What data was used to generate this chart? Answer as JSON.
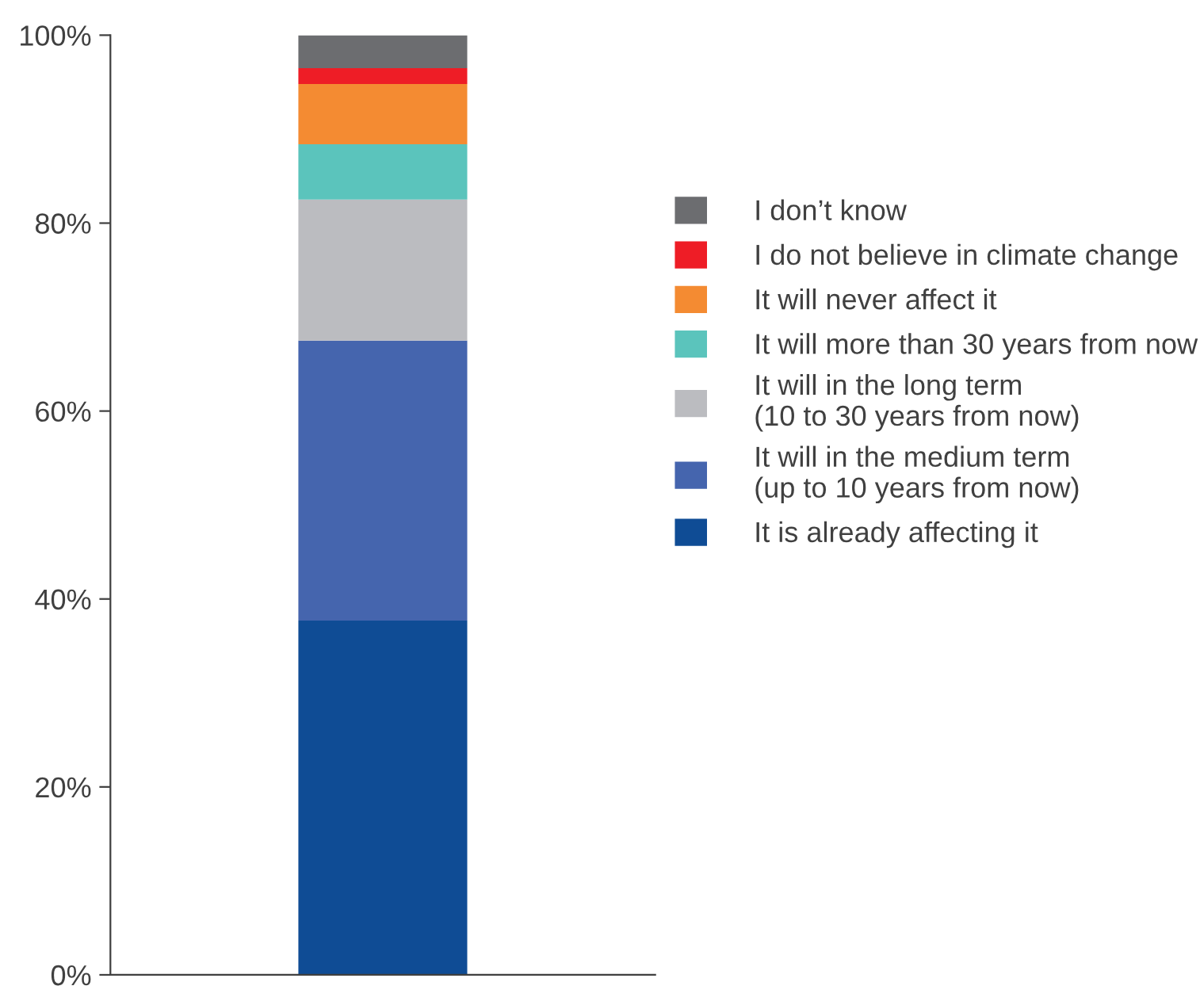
{
  "chart_data": {
    "type": "bar",
    "stacked": true,
    "categories": [
      null
    ],
    "series": [
      {
        "name": "It is already affecting it",
        "color": "#0f4c95",
        "values": [
          37.7
        ]
      },
      {
        "name": "It will in the medium term\n(up to 10 years from now)",
        "color": "#4565ae",
        "values": [
          29.8
        ]
      },
      {
        "name": "It will in the long term\n(10 to 30 years from now)",
        "color": "#bbbcc0",
        "values": [
          15.0
        ]
      },
      {
        "name": "It will more than 30 years from now",
        "color": "#5bc4bc",
        "values": [
          5.9
        ]
      },
      {
        "name": "It will never affect it",
        "color": "#f48b32",
        "values": [
          6.4
        ]
      },
      {
        "name": "I do not believe in climate change",
        "color": "#ee1d26",
        "values": [
          1.7
        ]
      },
      {
        "name": "I don’t know",
        "color": "#6c6d70",
        "values": [
          3.5
        ]
      }
    ],
    "ylim": [
      0,
      100
    ],
    "yticks": [
      {
        "value": 0,
        "label": "0%"
      },
      {
        "value": 20,
        "label": "20%"
      },
      {
        "value": 40,
        "label": "40%"
      },
      {
        "value": 60,
        "label": "60%"
      },
      {
        "value": 80,
        "label": "80%"
      },
      {
        "value": 100,
        "label": "100%"
      }
    ],
    "grid": false,
    "legend": "right",
    "tick_labels": "y"
  }
}
